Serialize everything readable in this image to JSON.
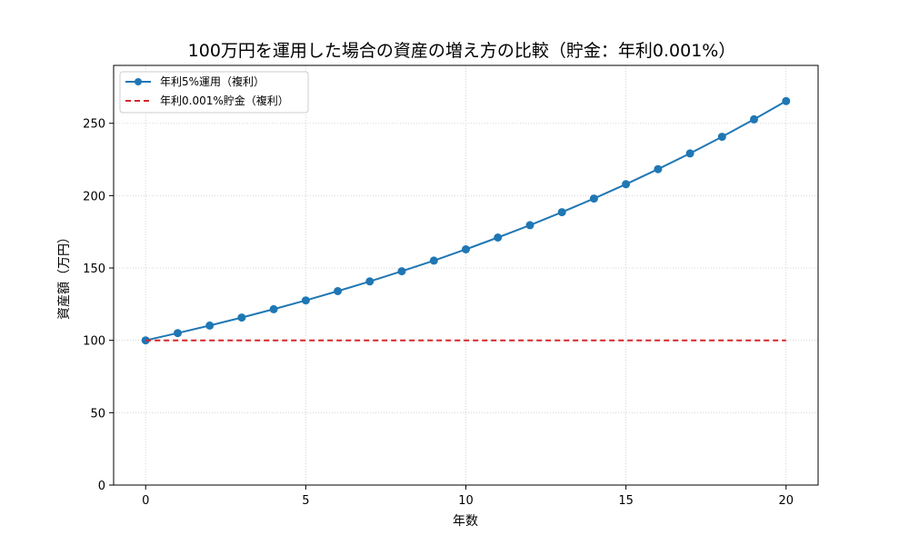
{
  "chart_data": {
    "type": "line",
    "title": "100万円を運用した場合の資産の増え方の比較（貯金：年利0.001%）",
    "xlabel": "年数",
    "ylabel": "資産額（万円）",
    "xlim": [
      -1,
      21
    ],
    "ylim": [
      0,
      290
    ],
    "xticks": [
      0,
      5,
      10,
      15,
      20
    ],
    "yticks": [
      0,
      50,
      100,
      150,
      200,
      250
    ],
    "grid": true,
    "legend_position": "upper-left",
    "x": [
      0,
      1,
      2,
      3,
      4,
      5,
      6,
      7,
      8,
      9,
      10,
      11,
      12,
      13,
      14,
      15,
      16,
      17,
      18,
      19,
      20
    ],
    "series": [
      {
        "name": "年利5%運用（複利）",
        "color": "#1f77b4",
        "style": "solid-marker",
        "values": [
          100.0,
          105.0,
          110.25,
          115.76,
          121.55,
          127.63,
          134.01,
          140.71,
          147.75,
          155.13,
          162.89,
          171.03,
          179.59,
          188.56,
          197.99,
          207.89,
          218.29,
          229.2,
          240.66,
          252.7,
          265.33
        ]
      },
      {
        "name": "年利0.001%貯金（複利）",
        "color": "#d62728",
        "style": "dashed",
        "values": [
          100.0,
          100.001,
          100.002,
          100.003,
          100.004,
          100.005,
          100.006,
          100.007,
          100.008,
          100.009,
          100.01,
          100.011,
          100.012,
          100.013,
          100.014,
          100.015,
          100.016,
          100.017,
          100.018,
          100.019,
          100.02
        ]
      }
    ]
  }
}
